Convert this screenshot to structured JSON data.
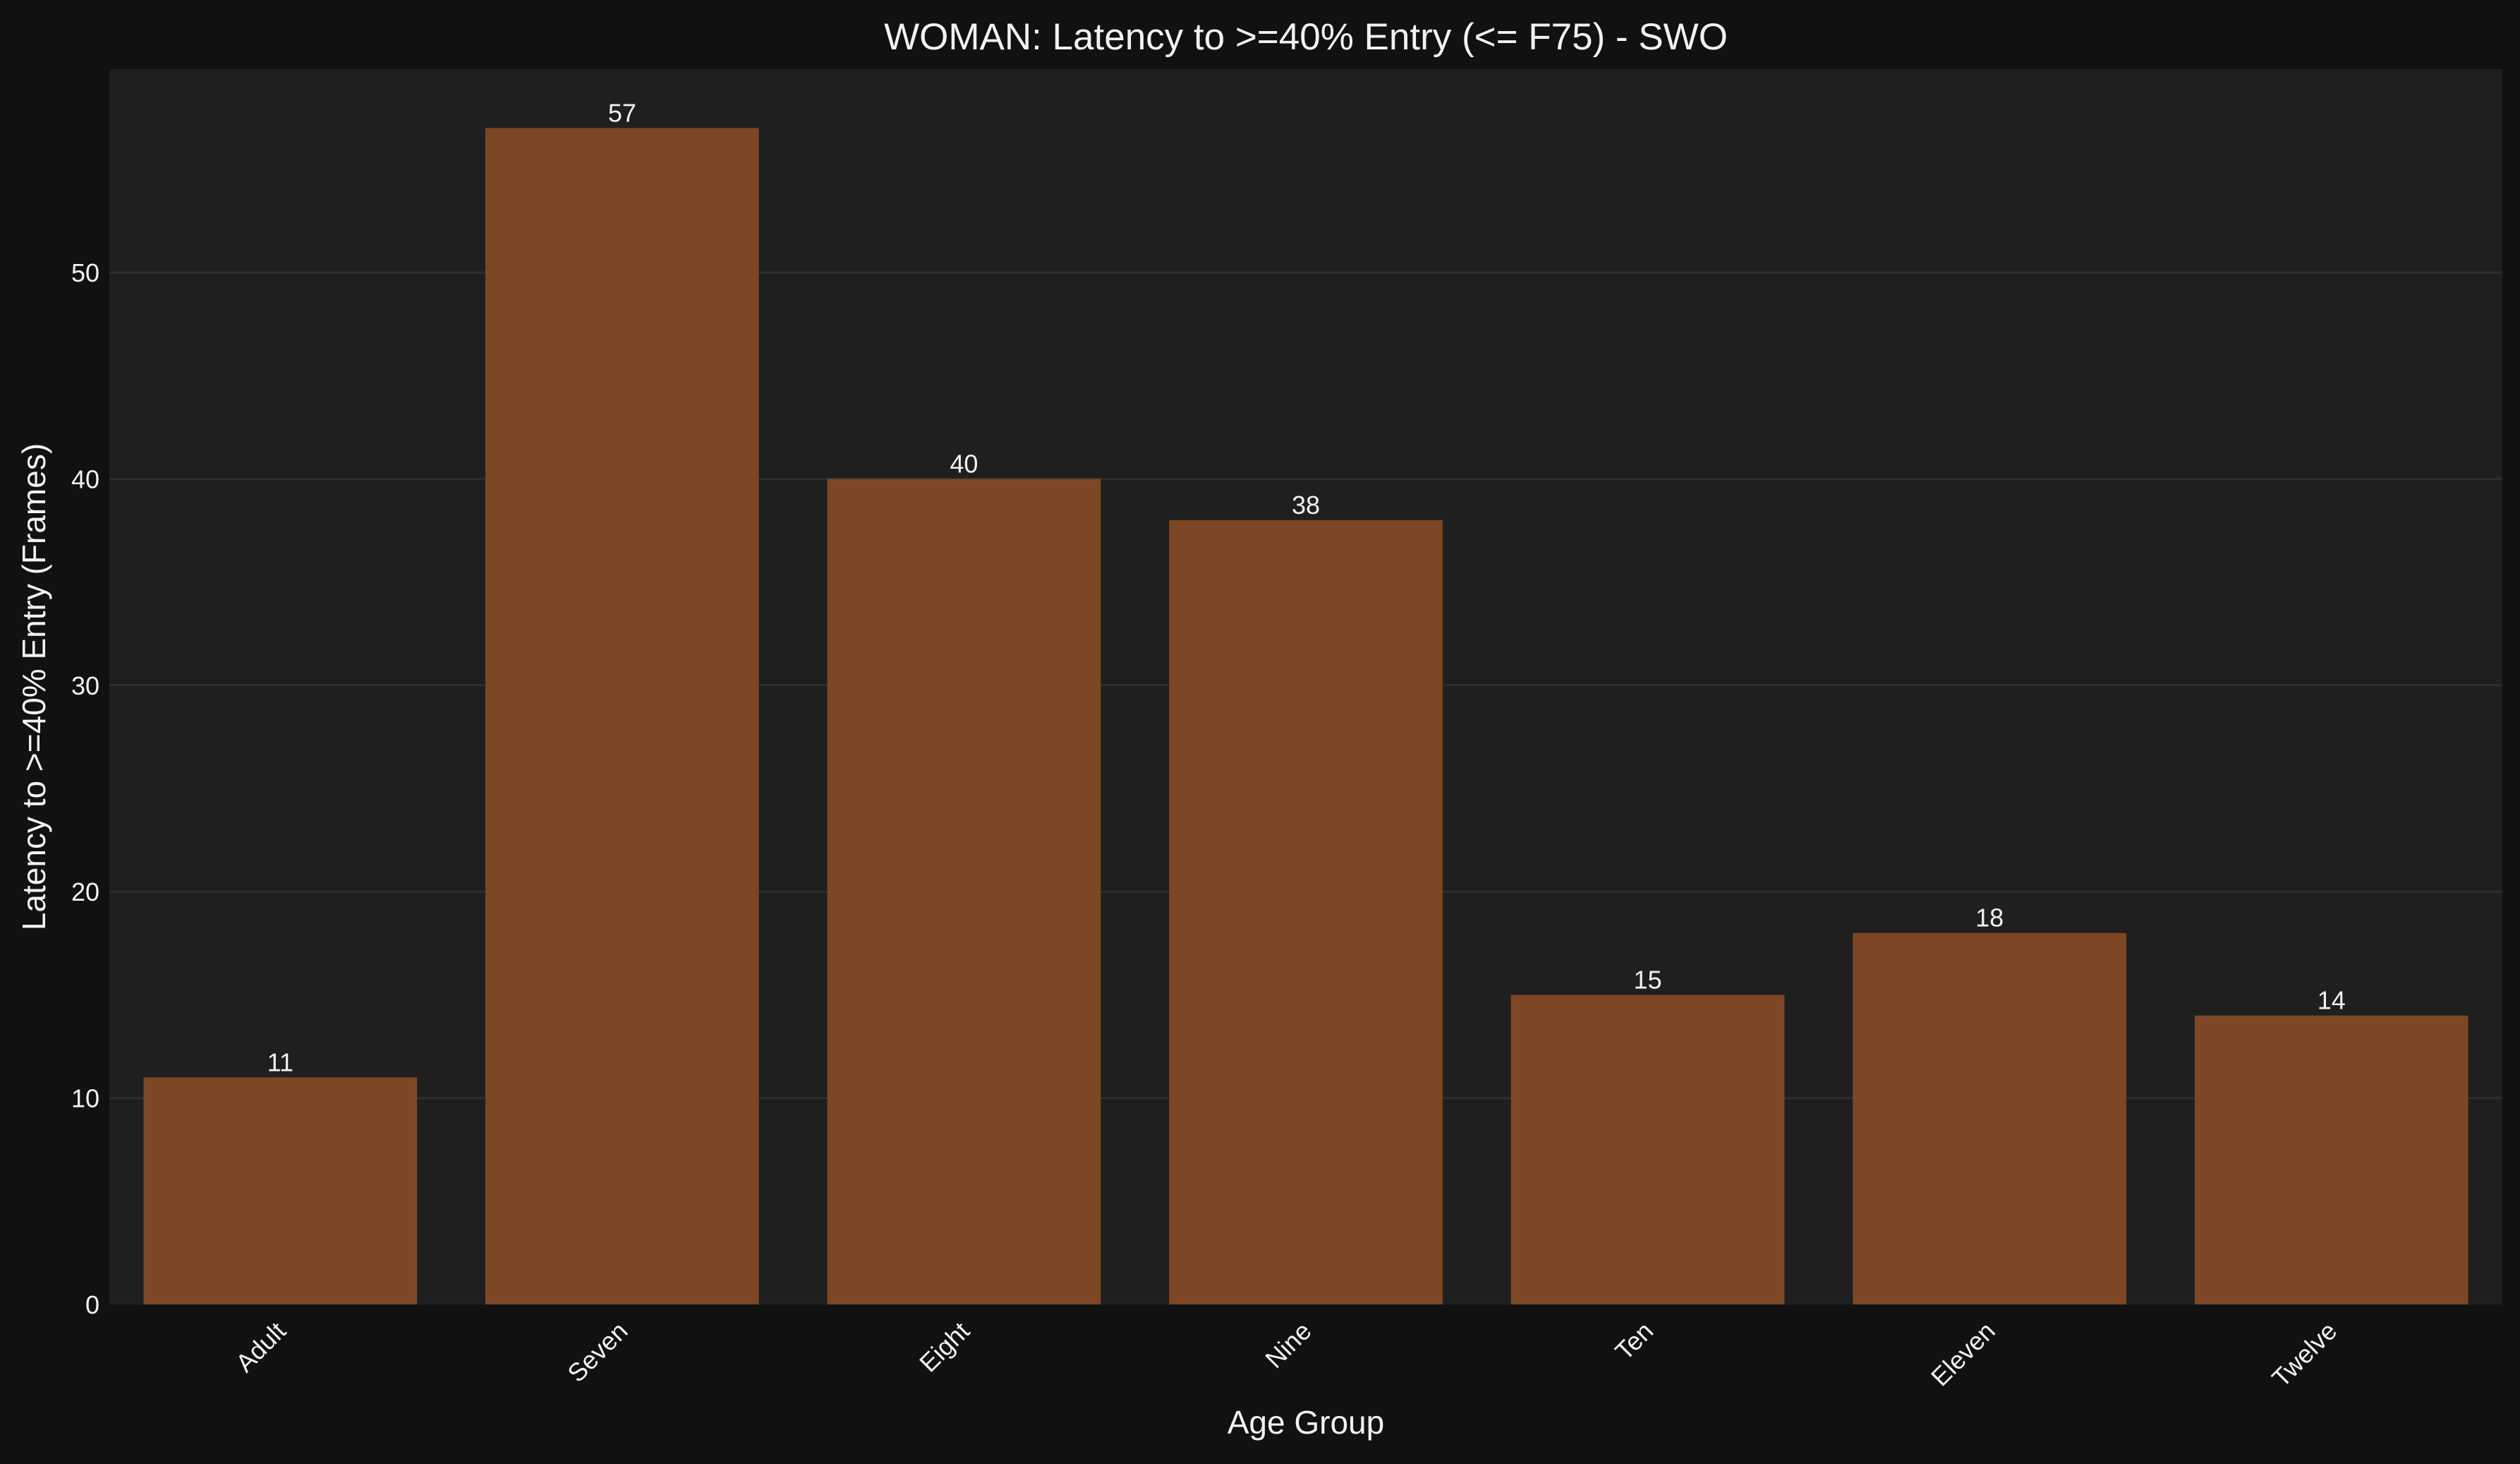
{
  "chart_data": {
    "type": "bar",
    "title": "WOMAN: Latency to >=40% Entry (<= F75) - SWO",
    "xlabel": "Age Group",
    "ylabel": "Latency to >=40% Entry (Frames)",
    "categories": [
      "Adult",
      "Seven",
      "Eight",
      "Nine",
      "Ten",
      "Eleven",
      "Twelve"
    ],
    "values": [
      11,
      57,
      40,
      38,
      15,
      18,
      14
    ],
    "data_labels": [
      "11",
      "57",
      "40",
      "38",
      "15",
      "18",
      "14"
    ],
    "ylim": [
      0,
      59.85
    ],
    "yticks": [
      0,
      10,
      20,
      30,
      40,
      50
    ],
    "grid": true,
    "legend": "none",
    "colors": {
      "background": "#111111",
      "plot_background": "#1f1f1f",
      "bar": "#7d4725",
      "grid": "#2e2e2e",
      "text": "#f2f2f2"
    }
  }
}
